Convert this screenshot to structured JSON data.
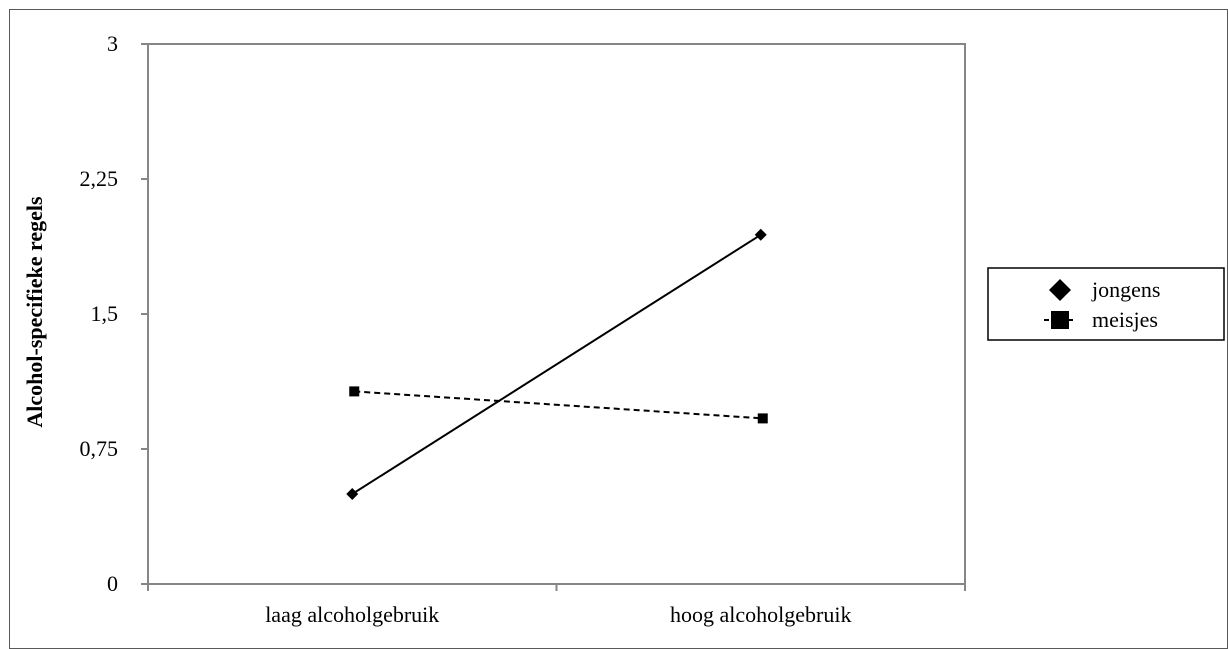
{
  "chart_data": {
    "type": "line",
    "title": "",
    "xlabel": "",
    "ylabel": "Alcohol-specifieke regels",
    "categories": [
      "laag alcoholgebruik",
      "hoog alcoholgebruik"
    ],
    "y_tick_labels": [
      "0",
      "0,75",
      "1,5",
      "2,25",
      "3"
    ],
    "y_ticks": [
      0,
      0.75,
      1.5,
      2.25,
      3
    ],
    "ylim": [
      0,
      3
    ],
    "grid": false,
    "legend_position": "right",
    "series": [
      {
        "name": "jongens",
        "values": [
          0.5,
          1.94
        ],
        "marker": "diamond",
        "line_style": "solid",
        "color": "#000000"
      },
      {
        "name": "meisjes",
        "values": [
          1.07,
          0.92
        ],
        "marker": "square",
        "line_style": "dashed",
        "color": "#000000"
      }
    ],
    "axis_color": "#868686",
    "border_color": "#595959"
  }
}
